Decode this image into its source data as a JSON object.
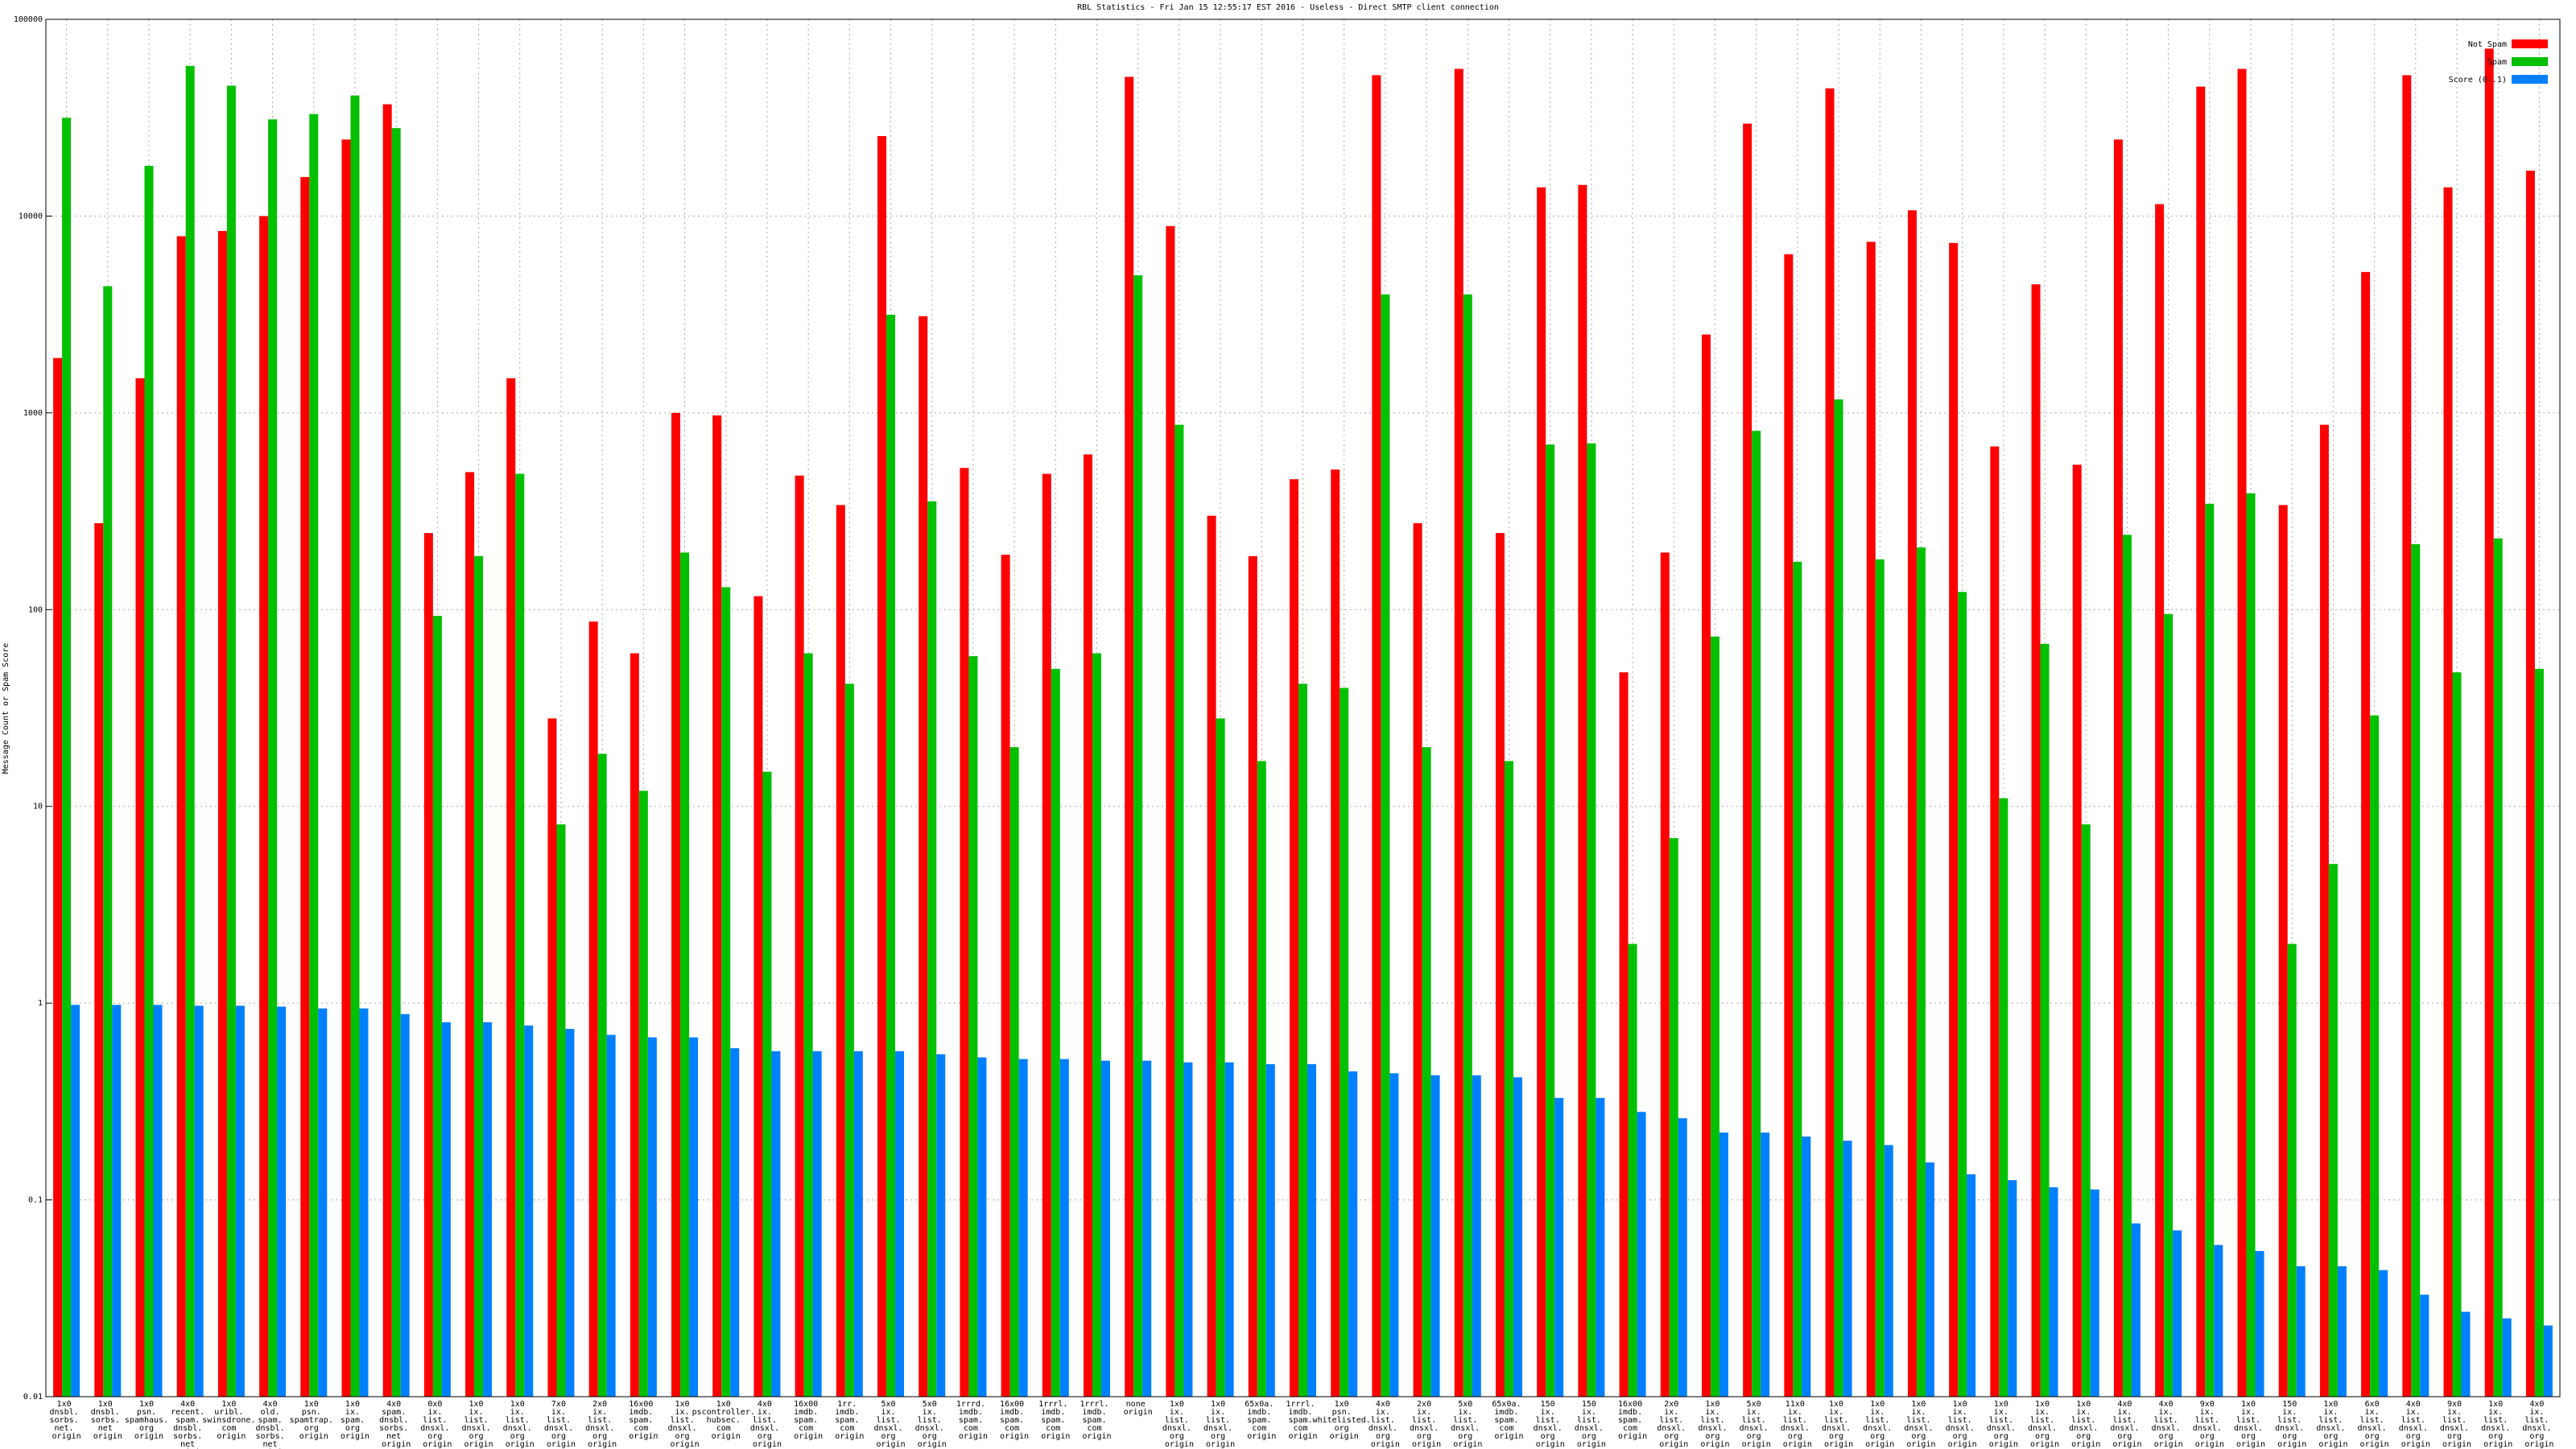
{
  "chart_data": {
    "type": "bar",
    "title": "RBL Statistics - Fri Jan 15 12:55:17 EST 2016 - Useless - Direct SMTP client connection",
    "y_label": "Message Count or Spam Score",
    "log_scale": true,
    "grid": true,
    "legend_position": "top-right",
    "ylim": [
      0.01,
      100000
    ],
    "yticks": [
      0.01,
      0.1,
      1,
      10,
      100,
      1000,
      10000,
      100000
    ],
    "categories": [
      "1x0 dnsbl. sorbs. net. origin",
      "1x0 dnsbl. sorbs. net origin",
      "1x0 psn. spamhaus. org origin",
      "4x0 recent. spam. dnsbl. sorbs. net origin",
      "1x0 uribl. swinsdrone. com origin",
      "4x0 old. spam. dnsbl. sorbs. net origin",
      "1x0 psn. spamtrap. org origin",
      "1x0 ix. spam. org origin",
      "4x0 spam. dnsbl. sorbs. net origin",
      "0x0 ix. list. dnsxl. org origin",
      "1x0 ix. list. dnsxl. org origin",
      "1x0 ix. list. dnsxl. org origin",
      "7x0 ix. list. dnsxl. org origin",
      "2x0 ix. list. dnsxl. org origin",
      "16x00 imdb. spam. com origin",
      "1x0 ix. list. dnsxl. org origin",
      "1x0 pscontroller. hubsec. com origin",
      "4x0 ix. list. dnsxl. org origin",
      "16x00 imdb. spam. com origin",
      "1rr. imdb. spam. com origin",
      "5x0 ix. list. dnsxl. org origin",
      "5x0 ix. list. dnsxl. org origin",
      "1rrrd. imdb. spam. com origin",
      "16x00 imdb. spam. com origin",
      "1rrrl. imdb. spam. com origin",
      "1rrrl. imdb. spam. com origin",
      "none origin",
      "1x0 ix. list. dnsxl. org origin",
      "1x0 ix. list. dnsxl. org origin",
      "65x0a. imdb. spam. com origin",
      "1rrrl. imdb. spam. com origin",
      "1x0 psn. whitelisted. org origin",
      "4x0 ix. list. dnsxl. org origin",
      "2x0 ix. list. dnsxl. org origin",
      "5x0 ix. list. dnsxl. org origin",
      "65x0a. imdb. spam. com origin",
      "150 ix. list. dnsxl. org origin",
      "150 ix. list. dnsxl. org origin",
      "16x00 imdb. spam. com origin",
      "2x0 ix. list. dnsxl. org origin",
      "1x0 ix. list. dnsxl. org origin",
      "5x0 ix. list. dnsxl. org origin",
      "11x0 ix. list. dnsxl. org origin",
      "1x0 ix. list. dnsxl. org origin",
      "1x0 ix. list. dnsxl. org origin",
      "1x0 ix. list. dnsxl. org origin",
      "1x0 ix. list. dnsxl. org origin",
      "1x0 ix. list. dnsxl. org origin",
      "1x0 ix. list. dnsxl. org origin",
      "1x0 ix. list. dnsxl. org origin",
      "4x0 ix. list. dnsxl. org origin",
      "4x0 ix. list. dnsxl. org origin",
      "9x0 ix. list. dnsxl. org origin",
      "1x0 ix. list. dnsxl. org origin",
      "150 ix. list. dnsxl. org origin",
      "1x0 ix. list. dnsxl. org origin",
      "6x0 ix. list. dnsxl. org origin",
      "4x0 ix. list. dnsxl. org origin",
      "9x0 ix. list. dnsxl. org origin",
      "1x0 ix. list. dnsxl. org origin",
      "4x0 ix. list. dnsxl. org origin"
    ],
    "series": [
      {
        "name": "Not Spam",
        "color": "#ff0000",
        "values": [
          1900,
          275,
          1500,
          7900,
          8400,
          10000,
          15800,
          24500,
          37000,
          245,
          500,
          1500,
          28,
          87,
          60,
          1000,
          970,
          117,
          480,
          340,
          25500,
          3100,
          525,
          190,
          490,
          615,
          51000,
          8900,
          300,
          187,
          460,
          515,
          52000,
          275,
          56000,
          245,
          14000,
          14400,
          48,
          195,
          2500,
          29500,
          6400,
          44600,
          7400,
          10700,
          7300,
          675,
          4500,
          545,
          24500,
          11500,
          45500,
          56000,
          340,
          870,
          5200,
          52000,
          14000,
          71000,
          17000
        ]
      },
      {
        "name": "Spam",
        "color": "#00c000",
        "values": [
          31600,
          4400,
          18000,
          58000,
          46000,
          31000,
          33000,
          41000,
          28000,
          93,
          187,
          490,
          8.1,
          18.5,
          12,
          195,
          130,
          15,
          60,
          42,
          3150,
          355,
          58,
          20,
          50,
          60,
          5000,
          870,
          28,
          17,
          42,
          40,
          4000,
          20,
          4000,
          17,
          690,
          700,
          2.0,
          6.9,
          73,
          810,
          175,
          1170,
          180,
          207,
          123,
          11,
          67,
          8.1,
          240,
          95,
          345,
          390,
          2.0,
          5.1,
          29,
          215,
          48,
          230,
          50
        ]
      },
      {
        "name": "Score (0..1)",
        "color": "#0080ff",
        "values": [
          0.98,
          0.98,
          0.98,
          0.97,
          0.97,
          0.96,
          0.94,
          0.94,
          0.88,
          0.8,
          0.8,
          0.77,
          0.74,
          0.69,
          0.67,
          0.67,
          0.59,
          0.57,
          0.57,
          0.57,
          0.57,
          0.55,
          0.53,
          0.52,
          0.52,
          0.51,
          0.51,
          0.5,
          0.5,
          0.49,
          0.49,
          0.45,
          0.44,
          0.43,
          0.43,
          0.42,
          0.33,
          0.33,
          0.28,
          0.26,
          0.22,
          0.22,
          0.21,
          0.2,
          0.19,
          0.155,
          0.135,
          0.126,
          0.116,
          0.113,
          0.076,
          0.07,
          0.059,
          0.055,
          0.046,
          0.046,
          0.044,
          0.033,
          0.027,
          0.025,
          0.023
        ]
      }
    ]
  }
}
